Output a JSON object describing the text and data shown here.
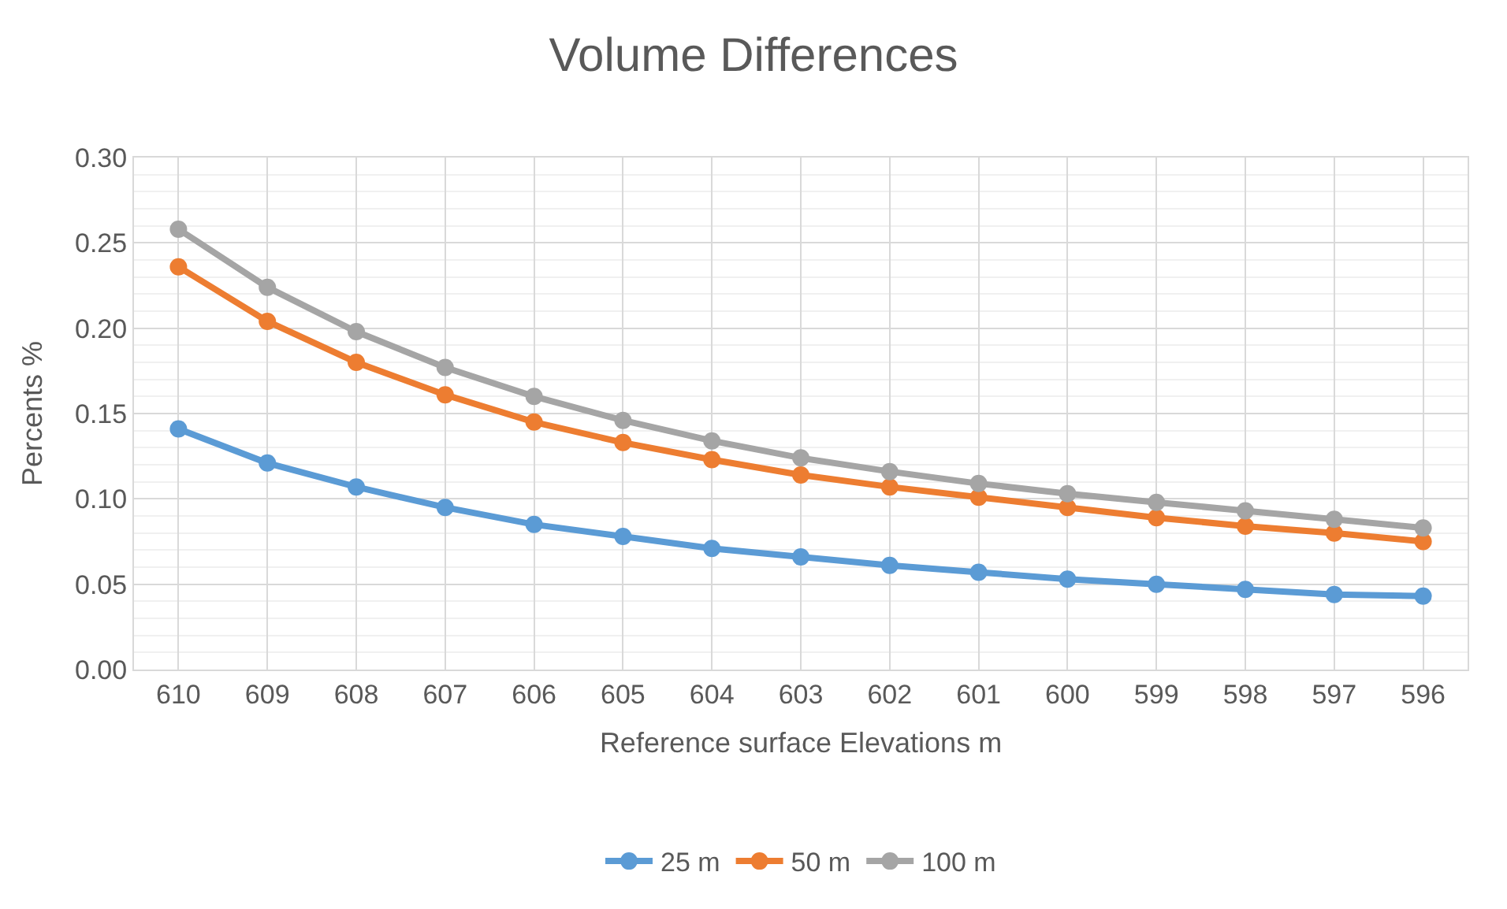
{
  "chart_data": {
    "type": "line",
    "title": "Volume Differences",
    "xlabel": "Reference surface Elevations m",
    "ylabel": "Percents %",
    "categories": [
      "610",
      "609",
      "608",
      "607",
      "606",
      "605",
      "604",
      "603",
      "602",
      "601",
      "600",
      "599",
      "598",
      "597",
      "596"
    ],
    "series": [
      {
        "name": "25 m",
        "color": "#5b9bd5",
        "values": [
          0.141,
          0.121,
          0.107,
          0.095,
          0.085,
          0.078,
          0.071,
          0.066,
          0.061,
          0.057,
          0.053,
          0.05,
          0.047,
          0.044,
          0.043
        ]
      },
      {
        "name": "50 m",
        "color": "#ed7d31",
        "values": [
          0.236,
          0.204,
          0.18,
          0.161,
          0.145,
          0.133,
          0.123,
          0.114,
          0.107,
          0.101,
          0.095,
          0.089,
          0.084,
          0.08,
          0.075
        ]
      },
      {
        "name": "100 m",
        "color": "#a5a5a5",
        "values": [
          0.258,
          0.224,
          0.198,
          0.177,
          0.16,
          0.146,
          0.134,
          0.124,
          0.116,
          0.109,
          0.103,
          0.098,
          0.093,
          0.088,
          0.083
        ]
      }
    ],
    "ylim": [
      0,
      0.3
    ],
    "yticks": [
      {
        "value": 0,
        "label": "0.00"
      },
      {
        "value": 0.05,
        "label": "0.05"
      },
      {
        "value": 0.1,
        "label": "0.10"
      },
      {
        "value": 0.15,
        "label": "0.15"
      },
      {
        "value": 0.2,
        "label": "0.20"
      },
      {
        "value": 0.25,
        "label": "0.25"
      },
      {
        "value": 0.3,
        "label": "0.30"
      }
    ],
    "grid": true,
    "legend": "bottom",
    "marker": "circle",
    "line_style": "solid"
  }
}
